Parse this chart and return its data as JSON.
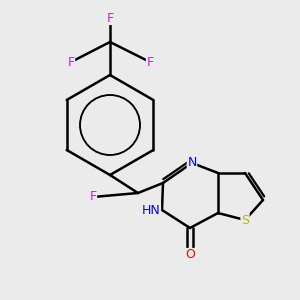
{
  "bg_color": "#ebebeb",
  "atom_colors": {
    "C": "#000000",
    "N": "#0000ff",
    "O": "#ff0000",
    "S": "#b8b800",
    "F": "#ff00ff",
    "H": "#000000"
  },
  "bond_color": "#000000",
  "bond_width": 1.8,
  "figsize": [
    3.0,
    3.0
  ],
  "dpi": 100,
  "xlim": [
    0,
    10
  ],
  "ylim": [
    0,
    10
  ]
}
